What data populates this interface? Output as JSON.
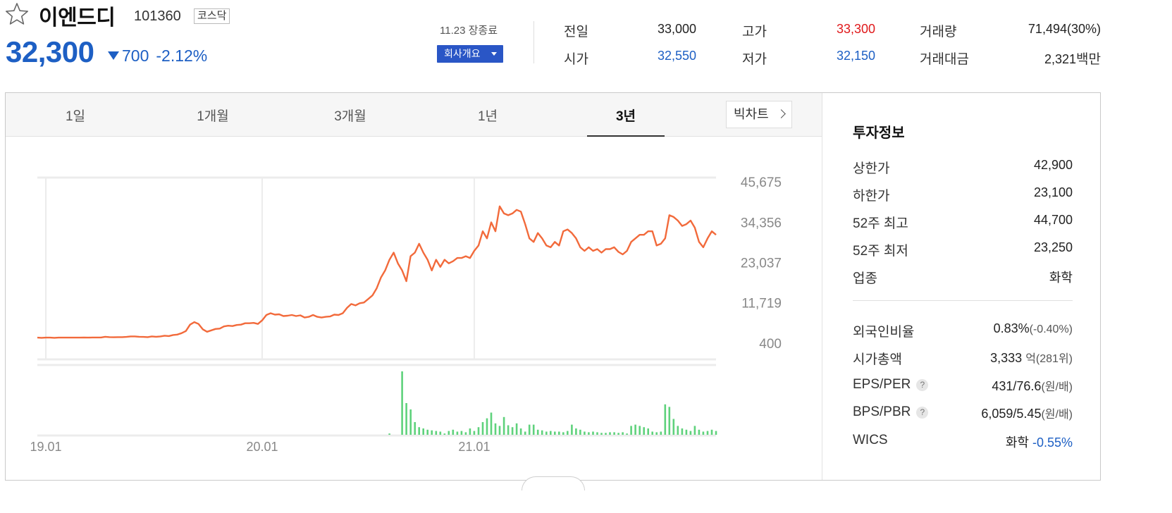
{
  "stock": {
    "name": "이엔드디",
    "code": "101360",
    "market": "코스닥",
    "price": "32,300",
    "change": "700",
    "change_pct": "-2.12%",
    "direction": "down"
  },
  "session": {
    "close_label": "11.23 장종료",
    "company_button": "회사개요"
  },
  "quotes": [
    {
      "label": "전일",
      "value": "33,000",
      "color": "#222222"
    },
    {
      "label": "시가",
      "value": "32,550",
      "color": "#1d5fc4"
    },
    {
      "label": "고가",
      "value": "33,300",
      "color": "#e0191b"
    },
    {
      "label": "저가",
      "value": "32,150",
      "color": "#1d5fc4"
    },
    {
      "label": "거래량",
      "value": "71,494(30%)",
      "color": "#222222"
    },
    {
      "label": "거래대금",
      "value": "2,321",
      "unit": "백만",
      "color": "#222222"
    }
  ],
  "tabs": [
    "1일",
    "1개월",
    "3개월",
    "1년",
    "3년"
  ],
  "active_tab": "3년",
  "big_chart_button": "빅차트",
  "info": {
    "title": "투자정보",
    "rows": [
      {
        "label": "상한가",
        "value": "42,900",
        "color": "#e0191b"
      },
      {
        "label": "하한가",
        "value": "23,100",
        "color": "#1d5fc4"
      },
      {
        "label": "52주 최고",
        "value": "44,700"
      },
      {
        "label": "52주 최저",
        "value": "23,250"
      },
      {
        "label": "업종",
        "value": "화학"
      }
    ],
    "rows2": [
      {
        "label": "외국인비율",
        "value": "0.83%",
        "sub": "(-0.40%)"
      },
      {
        "label": "시가총액",
        "value": "3,333",
        "sub": "억(281위)"
      },
      {
        "label": "EPS/PER",
        "value": "431/76.6",
        "sub": "(원/배)",
        "help": "?"
      },
      {
        "label": "BPS/PBR",
        "value": "6,059/5.45",
        "sub": "(원/배)",
        "help": "?"
      },
      {
        "label": "WICS",
        "value": "화학",
        "sub": "-0.55%"
      }
    ]
  },
  "chart_data": {
    "type": "line",
    "title": "",
    "xlabel": "",
    "ylabel": "",
    "y_ticks": [
      "45,675",
      "34,356",
      "23,037",
      "11,719",
      "400"
    ],
    "y_tick_values": [
      45675,
      34356,
      23037,
      11719,
      400
    ],
    "ylim": [
      400,
      45675
    ],
    "x_ticks": [
      "19.01",
      "20.01",
      "21.01"
    ],
    "x_tick_index": [
      2,
      53,
      103
    ],
    "line_color": "#f26a3b",
    "volume_color": "#5fd27c",
    "grid": true,
    "series": [
      {
        "values": [
          2150,
          2100,
          2150,
          2150,
          2100,
          2150,
          2150,
          2150,
          2150,
          2150,
          2150,
          2200,
          2150,
          2200,
          2200,
          2200,
          2400,
          2300,
          2250,
          2300,
          2300,
          2350,
          2500,
          2500,
          2400,
          2350,
          2300,
          2500,
          2400,
          2500,
          2700,
          2600,
          2900,
          3000,
          3400,
          4000,
          5800,
          6500,
          6000,
          4500,
          3800,
          4200,
          4600,
          4700,
          5300,
          5500,
          5400,
          5700,
          5800,
          6200,
          6200,
          6300,
          6000,
          7000,
          8500,
          9000,
          8600,
          8700,
          8200,
          8300,
          8500,
          8200,
          8400,
          7800,
          8000,
          8500,
          8000,
          7800,
          8000,
          8100,
          8600,
          8500,
          9000,
          10500,
          11600,
          11200,
          11800,
          12000,
          13000,
          14000,
          16000,
          19000,
          21000,
          24000,
          26000,
          23000,
          21000,
          18000,
          25000,
          26000,
          28500,
          26000,
          24000,
          21000,
          24000,
          22000,
          24000,
          23000,
          23600,
          24500,
          24500,
          25000,
          24500,
          26500,
          28000,
          32000,
          30000,
          34500,
          32000,
          39000,
          37000,
          36500,
          37000,
          38000,
          37500,
          34000,
          30000,
          29000,
          31500,
          30000,
          28000,
          27500,
          29000,
          28000,
          32000,
          32500,
          31500,
          30000,
          27500,
          26500,
          27500,
          26500,
          27000,
          26000,
          27000,
          27000,
          27500,
          26200,
          25500,
          26500,
          29000,
          30000,
          31000,
          31000,
          32000,
          32000,
          28000,
          28500,
          30000,
          36500,
          36000,
          35000,
          33500,
          34000,
          35000,
          33000,
          29000,
          27500,
          30000,
          32000,
          31000
        ]
      }
    ],
    "volume": [
      0,
      0,
      0,
      0,
      0,
      0,
      0,
      0,
      0,
      0,
      0,
      0,
      0,
      0,
      0,
      0,
      0,
      0,
      0,
      0,
      0,
      0,
      0,
      0,
      0,
      0,
      0,
      0,
      0,
      0,
      0,
      0,
      0,
      0,
      0,
      0,
      0,
      0,
      0,
      0,
      0,
      0,
      0,
      0,
      0,
      0,
      0,
      0,
      0,
      0,
      0,
      0,
      0,
      0,
      0,
      0,
      0,
      0,
      0,
      0,
      0,
      0,
      0,
      0,
      0,
      0,
      0,
      0,
      0,
      0,
      0,
      0,
      0,
      0,
      0,
      0,
      0,
      0,
      0,
      0,
      0,
      0,
      0,
      0.02,
      0,
      0,
      1.0,
      0.5,
      0.4,
      0.2,
      0.12,
      0.1,
      0.08,
      0.07,
      0.06,
      0.05,
      0.02,
      0.06,
      0.08,
      0.05,
      0.06,
      0.04,
      0.1,
      0.06,
      0.12,
      0.2,
      0.26,
      0.35,
      0.18,
      0.14,
      0.28,
      0.15,
      0.12,
      0.18,
      0.1,
      0.05,
      0.16,
      0.16,
      0.08,
      0.07,
      0.05,
      0.06,
      0.05,
      0.05,
      0.04,
      0.06,
      0.16,
      0.1,
      0.08,
      0.05,
      0.04,
      0.05,
      0.04,
      0.03,
      0.03,
      0.04,
      0.04,
      0.03,
      0.04,
      0.02,
      0.14,
      0.16,
      0.14,
      0.12,
      0.1,
      0.05,
      0.04,
      0.05,
      0.48,
      0.44,
      0.25,
      0.14,
      0.1,
      0.08,
      0.06,
      0.14,
      0.08,
      0.05,
      0.06,
      0.08,
      0.06
    ]
  }
}
